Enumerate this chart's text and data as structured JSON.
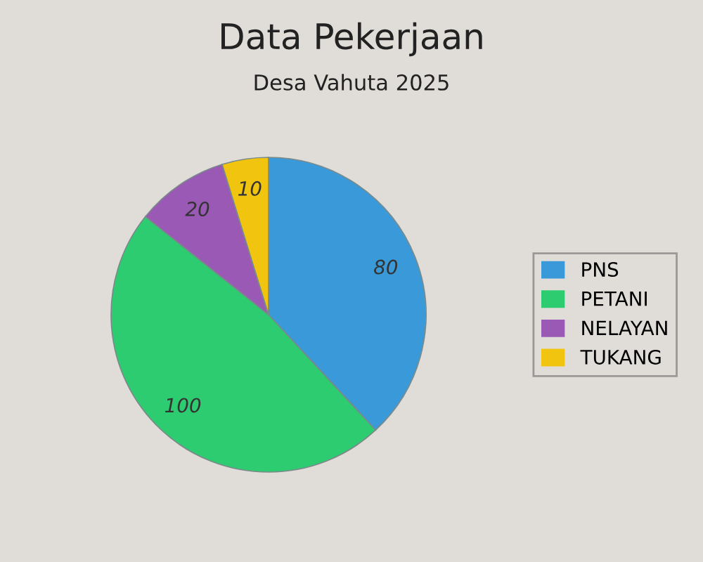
{
  "chart_data": {
    "type": "pie",
    "title": "Data Pekerjaan",
    "subtitle": "Desa Vahuta 2025",
    "categories": [
      "PNS",
      "PETANI",
      "NELAYAN",
      "TUKANG"
    ],
    "values": [
      80,
      100,
      20,
      10
    ],
    "colors": [
      "#3a99d8",
      "#2ecc71",
      "#9b59b6",
      "#f1c40f"
    ],
    "data_labels": true,
    "legend": "right"
  }
}
